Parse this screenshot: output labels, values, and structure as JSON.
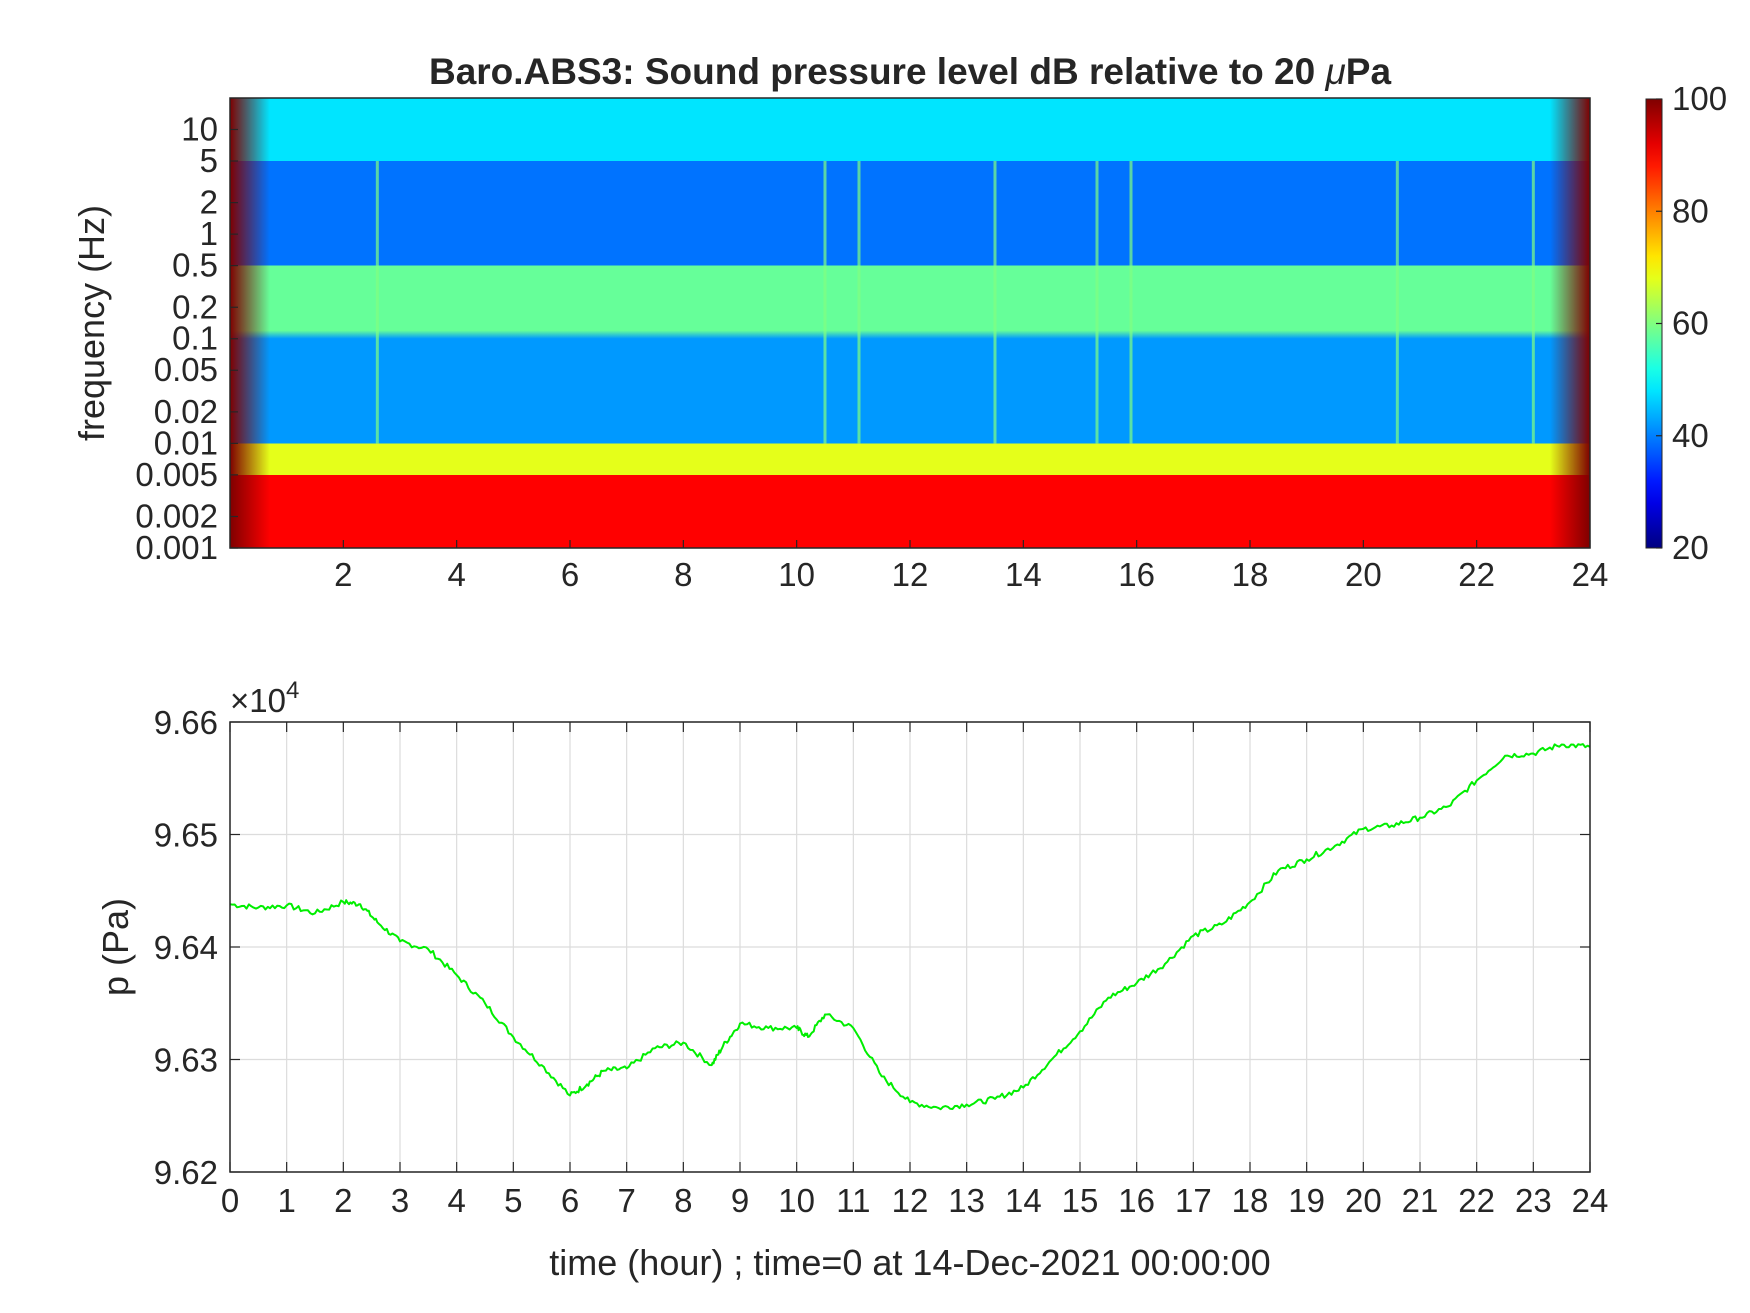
{
  "chart_data": [
    {
      "type": "heatmap",
      "title": "Baro.ABS3: Sound pressure level dB relative to 20 μPa",
      "title_prefix": "Baro.ABS3: Sound pressure level dB relative to 20 ",
      "title_mu": "μ",
      "title_suffix": "Pa",
      "xlabel": "",
      "ylabel": "frequency (Hz)",
      "xlim": [
        0,
        24
      ],
      "ylim": [
        0.001,
        20
      ],
      "yscale": "log",
      "x_ticks": [
        "2",
        "4",
        "6",
        "8",
        "10",
        "12",
        "14",
        "16",
        "18",
        "20",
        "22",
        "24"
      ],
      "y_ticks": [
        "0.001",
        "0.002",
        "0.005",
        "0.01",
        "0.02",
        "0.05",
        "0.1",
        "0.2",
        "0.5",
        "1",
        "2",
        "5",
        "10"
      ],
      "colormap": "jet",
      "clim": [
        20,
        100
      ],
      "colorbar_ticks": [
        "20",
        "40",
        "60",
        "80",
        "100"
      ],
      "bands": [
        {
          "f_range": [
            5,
            20
          ],
          "level_db": 48
        },
        {
          "f_range": [
            0.5,
            5
          ],
          "level_db": 39
        },
        {
          "f_range": [
            0.12,
            0.5
          ],
          "level_db": 58
        },
        {
          "f_range": [
            0.01,
            0.1
          ],
          "level_db": 42
        },
        {
          "f_range": [
            0.005,
            0.01
          ],
          "level_db": 68
        },
        {
          "f_range": [
            0.001,
            0.005
          ],
          "level_db": 90
        }
      ],
      "transient_times_hour": [
        2.6,
        10.5,
        11.1,
        13.5,
        15.3,
        15.9,
        20.6,
        23.0
      ]
    },
    {
      "type": "line",
      "title": "",
      "xlabel": "time (hour) ; time=0 at 14-Dec-2021 00:00:00",
      "ylabel": "p (Pa)",
      "exponent_label": "×10",
      "exponent_power": "4",
      "xlim": [
        0,
        24
      ],
      "ylim": [
        96200,
        96600
      ],
      "x_ticks": [
        "0",
        "1",
        "2",
        "3",
        "4",
        "5",
        "6",
        "7",
        "8",
        "9",
        "10",
        "11",
        "12",
        "13",
        "14",
        "15",
        "16",
        "17",
        "18",
        "19",
        "20",
        "21",
        "22",
        "23",
        "24"
      ],
      "y_ticks": [
        "9.62",
        "9.63",
        "9.64",
        "9.65",
        "9.66"
      ],
      "grid": true,
      "series": [
        {
          "color": "#00ee00",
          "x": [
            0,
            0.5,
            1,
            1.5,
            2,
            2.3,
            2.6,
            3,
            3.5,
            4,
            4.5,
            5,
            5.5,
            6,
            6.3,
            6.6,
            7,
            7.5,
            8,
            8.5,
            8.7,
            9,
            9.5,
            10,
            10.2,
            10.5,
            11,
            11.5,
            12,
            12.5,
            13,
            13.5,
            14,
            14.5,
            15,
            15.5,
            16,
            16.5,
            17,
            17.5,
            18,
            18.5,
            19,
            19.5,
            20,
            20.5,
            21,
            21.5,
            22,
            22.5,
            23,
            23.5,
            24
          ],
          "y": [
            96438,
            96435,
            96437,
            96430,
            96440,
            96438,
            96422,
            96405,
            96398,
            96375,
            96350,
            96320,
            96295,
            96268,
            96278,
            96290,
            96292,
            96310,
            96315,
            96295,
            96312,
            96332,
            96328,
            96328,
            96320,
            96340,
            96328,
            96285,
            96262,
            96257,
            96260,
            96265,
            96275,
            96300,
            96325,
            96355,
            96368,
            96385,
            96410,
            96420,
            96440,
            96468,
            96478,
            96490,
            96505,
            96508,
            96515,
            96525,
            96548,
            96570,
            96572,
            96580,
            96578
          ]
        }
      ]
    }
  ],
  "colors": {
    "axis": "#262626",
    "grid": "#dcdcdc",
    "line": "#00ee00"
  }
}
